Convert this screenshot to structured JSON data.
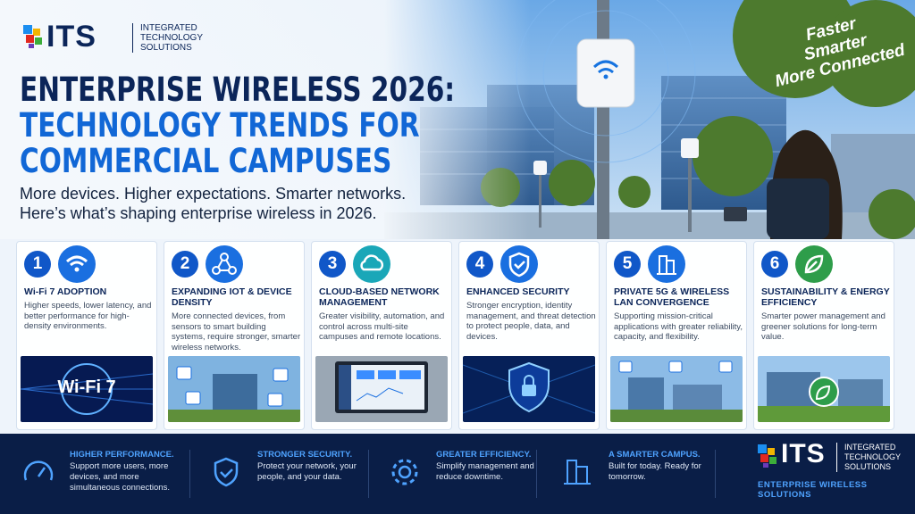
{
  "logo": {
    "mark": "ITS",
    "name": "INTEGRATED TECHNOLOGY SOLUTIONS"
  },
  "badge": [
    "Faster",
    "Smarter",
    "More Connected"
  ],
  "header": {
    "title": [
      "ENTERPRISE WIRELESS 2026:",
      "TECHNOLOGY TRENDS FOR",
      "COMMERCIAL CAMPUSES"
    ],
    "subtitle": [
      "More devices. Higher expectations. Smarter networks.",
      "Here’s what’s shaping enterprise wireless in 2026."
    ]
  },
  "cards": [
    {
      "number": "1",
      "title": "Wi-Fi 7 ADOPTION",
      "text": "Higher speeds, lower latency, and better performance for high-density environments.",
      "image_label": "Wi-Fi 7"
    },
    {
      "number": "2",
      "title": "EXPANDING IOT & DEVICE DENSITY",
      "text": "More connected devices, from sensors to smart building systems, require stronger, smarter wireless networks."
    },
    {
      "number": "3",
      "title": "CLOUD-BASED NETWORK MANAGEMENT",
      "text": "Greater visibility, automation, and control across multi-site campuses and remote locations."
    },
    {
      "number": "4",
      "title": "ENHANCED SECURITY",
      "text": "Stronger encryption, identity management, and threat detection to protect people, data, and devices."
    },
    {
      "number": "5",
      "title": "PRIVATE 5G & WIRELESS LAN CONVERGENCE",
      "text": "Supporting mission-critical applications with greater reliability, capacity, and flexibility."
    },
    {
      "number": "6",
      "title": "SUSTAINABILITY & ENERGY EFFICIENCY",
      "text": "Smarter power management and greener solutions for long-term value."
    }
  ],
  "footer": {
    "items": [
      {
        "title": "HIGHER PERFORMANCE.",
        "text": "Support more users, more devices, and more simultaneous connections."
      },
      {
        "title": "STRONGER SECURITY.",
        "text": "Protect your network, your people, and your data."
      },
      {
        "title": "GREATER EFFICIENCY.",
        "text": "Simplify management and reduce downtime."
      },
      {
        "title": "A SMARTER CAMPUS.",
        "text": "Built for today. Ready for tomorrow."
      }
    ],
    "logo": {
      "mark": "ITS",
      "name": "INTEGRATED TECHNOLOGY SOLUTIONS"
    },
    "tagline": "ENTERPRISE WIRELESS SOLUTIONS"
  }
}
